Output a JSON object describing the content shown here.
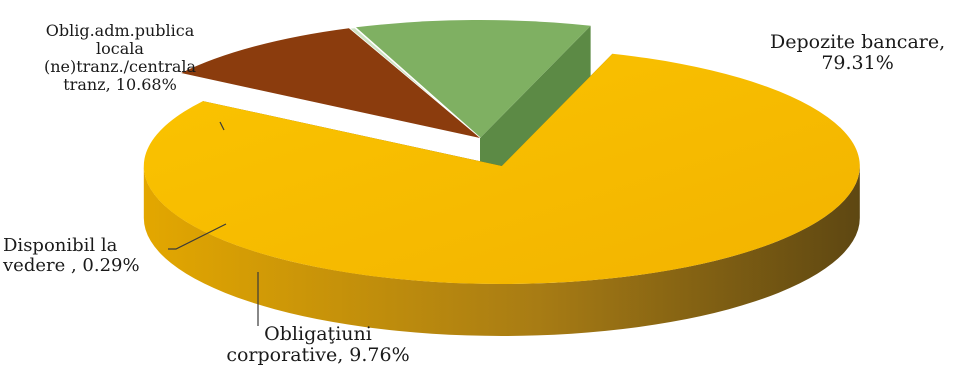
{
  "chart_data": {
    "type": "pie",
    "slices": [
      {
        "label": "Depozite bancare",
        "value": 79.31,
        "value_label": "79.31%",
        "color": "#F5B800",
        "exploded": true
      },
      {
        "label": "Obligaţiuni corporative",
        "value": 9.76,
        "value_label": "9.76%",
        "color": "#8B3C0D",
        "exploded": false
      },
      {
        "label": "Disponibil la vedere",
        "value": 0.29,
        "value_label": "0.29%",
        "color": "#CFE3C4",
        "exploded": false
      },
      {
        "label": "Oblig.adm.publica locala (ne)tranz./centrala tranz",
        "value": 10.68,
        "value_label": "10.68%",
        "color": "#7FB062",
        "exploded": false
      }
    ],
    "style": "3d-exploded"
  },
  "labels": {
    "depozite": [
      "Depozite bancare,",
      "79.31%"
    ],
    "oblig_adm": [
      "Oblig.adm.publica",
      "locala",
      "(ne)tranz./centrala",
      "tranz, 10.68%"
    ],
    "disponibil": [
      "Disponibil la",
      "vedere , 0.29%"
    ],
    "corporative": [
      "Obligaţiuni",
      "corporative, 9.76%"
    ]
  }
}
